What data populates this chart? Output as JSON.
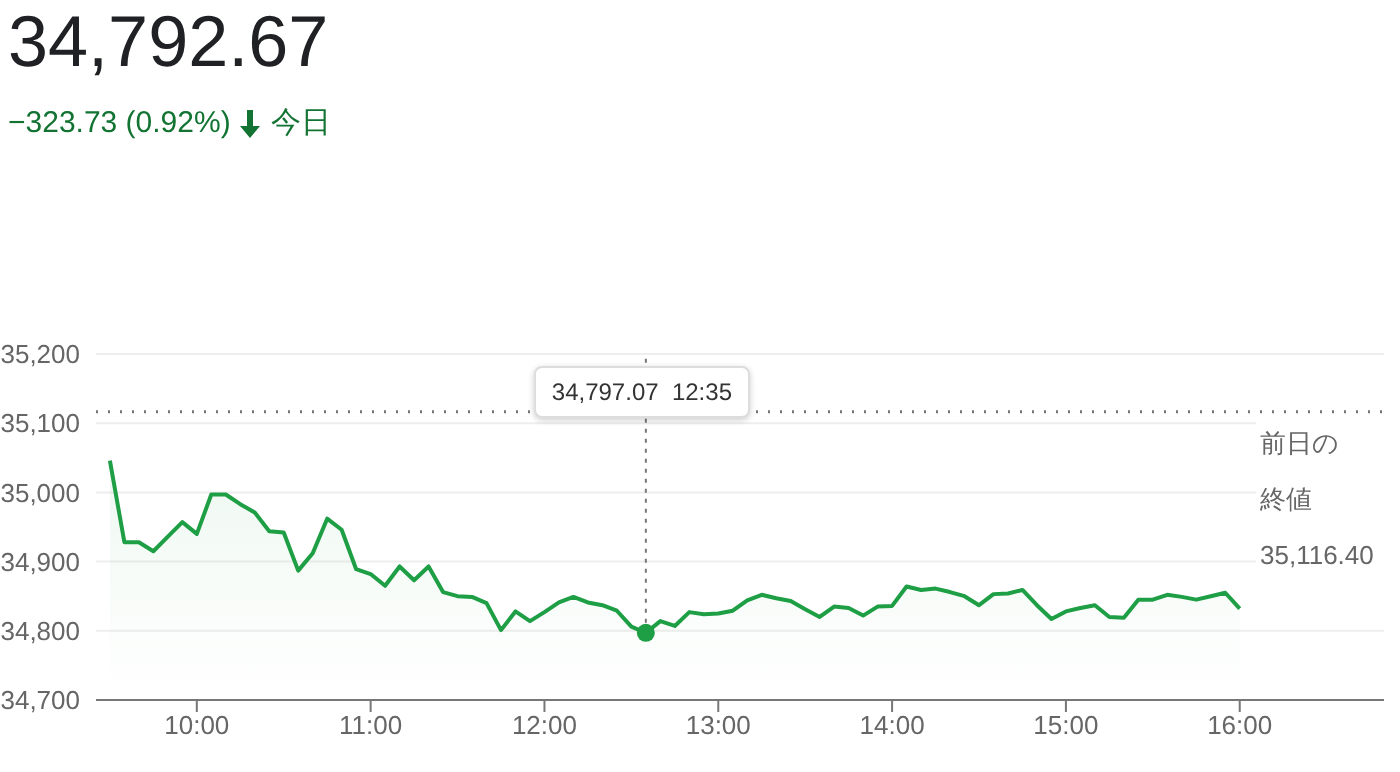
{
  "chart_data": {
    "type": "area",
    "title": "34,792.67",
    "subtitle": "−323.73 (0.92%)",
    "annotations": [
      "今日",
      {
        "text": "34,797.07  12:35",
        "x": 12.5833,
        "y": 34797.07
      }
    ],
    "x": [
      9.5,
      9.5833,
      9.6667,
      9.75,
      9.8333,
      9.9167,
      10,
      10.0833,
      10.1667,
      10.25,
      10.3333,
      10.4167,
      10.5,
      10.5833,
      10.6667,
      10.75,
      10.8333,
      10.9167,
      11,
      11.0833,
      11.1667,
      11.25,
      11.3333,
      11.4167,
      11.5,
      11.5833,
      11.6667,
      11.75,
      11.8333,
      11.9167,
      12,
      12.0833,
      12.1667,
      12.25,
      12.3333,
      12.4167,
      12.5,
      12.5833,
      12.6667,
      12.75,
      12.8333,
      12.9167,
      13,
      13.0833,
      13.1667,
      13.25,
      13.3333,
      13.4167,
      13.5,
      13.5833,
      13.6667,
      13.75,
      13.8333,
      13.9167,
      14,
      14.0833,
      14.1667,
      14.25,
      14.3333,
      14.4167,
      14.5,
      14.5833,
      14.6667,
      14.75,
      14.8333,
      14.9167,
      15,
      15.0833,
      15.1667,
      15.25,
      15.3333,
      15.4167,
      15.5,
      15.5833,
      15.6667,
      15.75,
      15.8333,
      15.9167,
      16
    ],
    "series": [
      {
        "color": "#1e9e45",
        "values": [
          35046,
          34928,
          34928,
          34915,
          34936,
          34957,
          34940,
          34997,
          34997,
          34983,
          34971,
          34944,
          34942,
          34887,
          34912,
          34962,
          34946,
          34889,
          34882,
          34865,
          34893,
          34873,
          34893,
          34856,
          34850,
          34849,
          34840,
          34801,
          34828,
          34814,
          34827,
          34841,
          34849,
          34841,
          34837,
          34829,
          34806,
          34797.07,
          34814,
          34807,
          34827,
          34824,
          34825,
          34829,
          34844,
          34852,
          34847,
          34843,
          34831,
          34820,
          34835,
          34833,
          34822,
          34835,
          34836,
          34864,
          34859,
          34861,
          34856,
          34850,
          34837,
          34853,
          34854,
          34859,
          34837,
          34817,
          34828,
          34833,
          34837,
          34820,
          34819,
          34845,
          34845,
          34852,
          34849,
          34845,
          34850,
          34855,
          34832
        ]
      }
    ],
    "xlim": [
      9.42,
      16.83
    ],
    "xticks": [
      {
        "value": 10,
        "label": "10:00"
      },
      {
        "value": 11,
        "label": "11:00"
      },
      {
        "value": 12,
        "label": "12:00"
      },
      {
        "value": 13,
        "label": "13:00"
      },
      {
        "value": 14,
        "label": "14:00"
      },
      {
        "value": 15,
        "label": "15:00"
      },
      {
        "value": 16,
        "label": "16:00"
      }
    ],
    "ylim": [
      34700,
      35200
    ],
    "yticks": [
      {
        "value": 34700,
        "label": "34,700"
      },
      {
        "value": 34800,
        "label": "34,800"
      },
      {
        "value": 34900,
        "label": "34,900"
      },
      {
        "value": 35000,
        "label": "35,000"
      },
      {
        "value": 35100,
        "label": "35,100"
      },
      {
        "value": 35200,
        "label": "35,200"
      }
    ],
    "ref_lines": [
      {
        "axis": "y",
        "value": 35116.4,
        "label": "前日の終値 35,116.40",
        "color": "#777777",
        "line_style": "dotted"
      }
    ],
    "grid": "y",
    "marker": "none",
    "line_style": "solid"
  }
}
